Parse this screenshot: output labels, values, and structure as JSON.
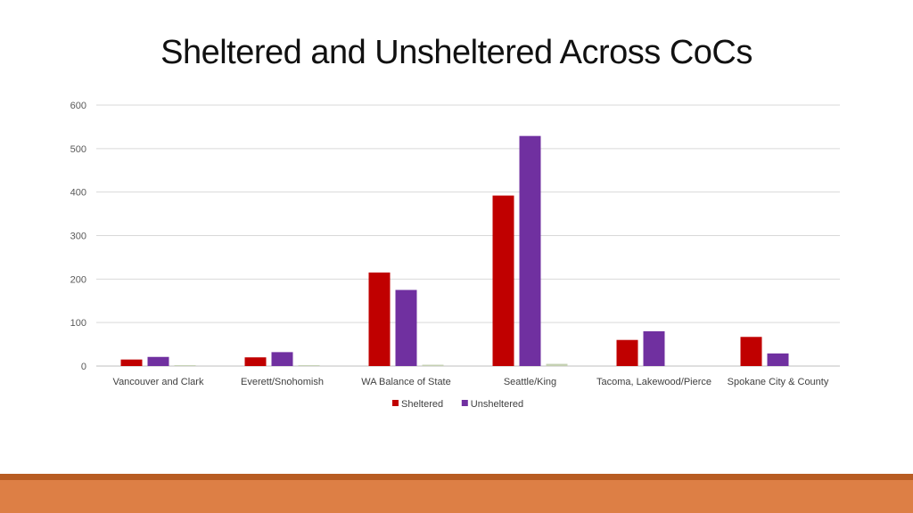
{
  "slide": {
    "title": "Sheltered and Unsheltered Across CoCs"
  },
  "chart_data": {
    "type": "bar",
    "categories": [
      "Vancouver and Clark",
      "Everett/Snohomish",
      "WA Balance of State",
      "Seattle/King",
      "Tacoma, Lakewood/Pierce",
      "Spokane City & County"
    ],
    "series": [
      {
        "name": "Sheltered",
        "color": "#c00000",
        "values": [
          15,
          20,
          215,
          392,
          60,
          67
        ]
      },
      {
        "name": "Unsheltered",
        "color": "#7030a0",
        "values": [
          21,
          32,
          175,
          529,
          80,
          29
        ]
      },
      {
        "name": "",
        "color": "#c4d0b2",
        "values": [
          2,
          2,
          3,
          5,
          0,
          0
        ]
      }
    ],
    "y_ticks": [
      0,
      100,
      200,
      300,
      400,
      500,
      600
    ],
    "ylim": [
      0,
      600
    ],
    "grid": true,
    "legend": "bottom",
    "title": "",
    "xlabel": "",
    "ylabel": ""
  }
}
